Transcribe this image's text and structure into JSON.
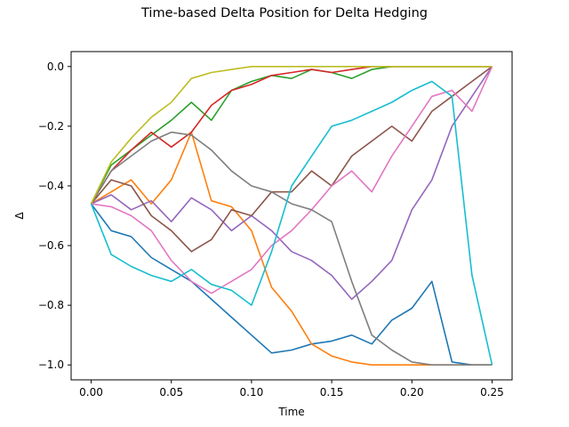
{
  "chart_data": {
    "type": "line",
    "title": "Time-based Delta Position for Delta Hedging",
    "xlabel": "Time",
    "ylabel": "Δ",
    "xlim": [
      -0.0125,
      0.2625
    ],
    "ylim": [
      -1.05,
      0.05
    ],
    "xticks": [
      0.0,
      0.05,
      0.1,
      0.15,
      0.2,
      0.25
    ],
    "xtick_labels": [
      "0.00",
      "0.05",
      "0.10",
      "0.15",
      "0.20",
      "0.25"
    ],
    "yticks": [
      0.0,
      -0.2,
      -0.4,
      -0.6,
      -0.8,
      -1.0
    ],
    "ytick_labels": [
      "0.0",
      "−0.2",
      "−0.4",
      "−0.6",
      "−0.8",
      "−1.0"
    ],
    "grid": false,
    "legend": "none",
    "x": [
      0.0,
      0.0125,
      0.025,
      0.0375,
      0.05,
      0.0625,
      0.075,
      0.0875,
      0.1,
      0.1125,
      0.125,
      0.1375,
      0.15,
      0.1625,
      0.175,
      0.1875,
      0.2,
      0.2125,
      0.225,
      0.2375,
      0.25
    ],
    "series": [
      {
        "color": "#1f77b4",
        "values": [
          -0.46,
          -0.55,
          -0.57,
          -0.64,
          -0.68,
          -0.72,
          -0.78,
          -0.84,
          -0.9,
          -0.96,
          -0.95,
          -0.93,
          -0.92,
          -0.9,
          -0.93,
          -0.85,
          -0.81,
          -0.72,
          -0.99,
          -1.0,
          -1.0
        ]
      },
      {
        "color": "#ff7f0e",
        "values": [
          -0.46,
          -0.42,
          -0.38,
          -0.46,
          -0.38,
          -0.22,
          -0.45,
          -0.47,
          -0.55,
          -0.74,
          -0.82,
          -0.93,
          -0.97,
          -0.99,
          -1.0,
          -1.0,
          -1.0,
          -1.0,
          -1.0,
          -1.0,
          -1.0
        ]
      },
      {
        "color": "#2ca02c",
        "values": [
          -0.46,
          -0.33,
          -0.28,
          -0.23,
          -0.18,
          -0.12,
          -0.18,
          -0.08,
          -0.05,
          -0.03,
          -0.04,
          -0.01,
          -0.02,
          -0.04,
          -0.01,
          0.0,
          0.0,
          0.0,
          0.0,
          0.0,
          0.0
        ]
      },
      {
        "color": "#d62728",
        "values": [
          -0.46,
          -0.35,
          -0.28,
          -0.22,
          -0.27,
          -0.22,
          -0.13,
          -0.08,
          -0.06,
          -0.03,
          -0.02,
          -0.01,
          -0.02,
          -0.01,
          0.0,
          0.0,
          0.0,
          0.0,
          0.0,
          0.0,
          0.0
        ]
      },
      {
        "color": "#9467bd",
        "values": [
          -0.46,
          -0.43,
          -0.48,
          -0.45,
          -0.52,
          -0.44,
          -0.48,
          -0.55,
          -0.5,
          -0.55,
          -0.62,
          -0.65,
          -0.7,
          -0.78,
          -0.72,
          -0.65,
          -0.48,
          -0.38,
          -0.2,
          -0.1,
          0.0
        ]
      },
      {
        "color": "#8c564b",
        "values": [
          -0.46,
          -0.38,
          -0.4,
          -0.5,
          -0.55,
          -0.62,
          -0.58,
          -0.48,
          -0.5,
          -0.42,
          -0.42,
          -0.35,
          -0.4,
          -0.3,
          -0.25,
          -0.2,
          -0.25,
          -0.15,
          -0.1,
          -0.05,
          0.0
        ]
      },
      {
        "color": "#e377c2",
        "values": [
          -0.46,
          -0.47,
          -0.5,
          -0.55,
          -0.65,
          -0.72,
          -0.76,
          -0.72,
          -0.68,
          -0.6,
          -0.55,
          -0.48,
          -0.4,
          -0.35,
          -0.42,
          -0.3,
          -0.2,
          -0.1,
          -0.08,
          -0.15,
          0.0
        ]
      },
      {
        "color": "#7f7f7f",
        "values": [
          -0.46,
          -0.35,
          -0.3,
          -0.25,
          -0.22,
          -0.23,
          -0.28,
          -0.35,
          -0.4,
          -0.42,
          -0.46,
          -0.48,
          -0.52,
          -0.72,
          -0.9,
          -0.95,
          -0.99,
          -1.0,
          -1.0,
          -1.0,
          -1.0
        ]
      },
      {
        "color": "#bcbd22",
        "values": [
          -0.46,
          -0.32,
          -0.24,
          -0.17,
          -0.12,
          -0.04,
          -0.02,
          -0.01,
          0.0,
          0.0,
          0.0,
          0.0,
          0.0,
          0.0,
          0.0,
          0.0,
          0.0,
          0.0,
          0.0,
          0.0,
          0.0
        ]
      },
      {
        "color": "#17becf",
        "values": [
          -0.46,
          -0.63,
          -0.67,
          -0.7,
          -0.72,
          -0.68,
          -0.73,
          -0.75,
          -0.8,
          -0.62,
          -0.4,
          -0.3,
          -0.2,
          -0.18,
          -0.15,
          -0.12,
          -0.08,
          -0.05,
          -0.1,
          -0.7,
          -1.0
        ]
      }
    ]
  }
}
